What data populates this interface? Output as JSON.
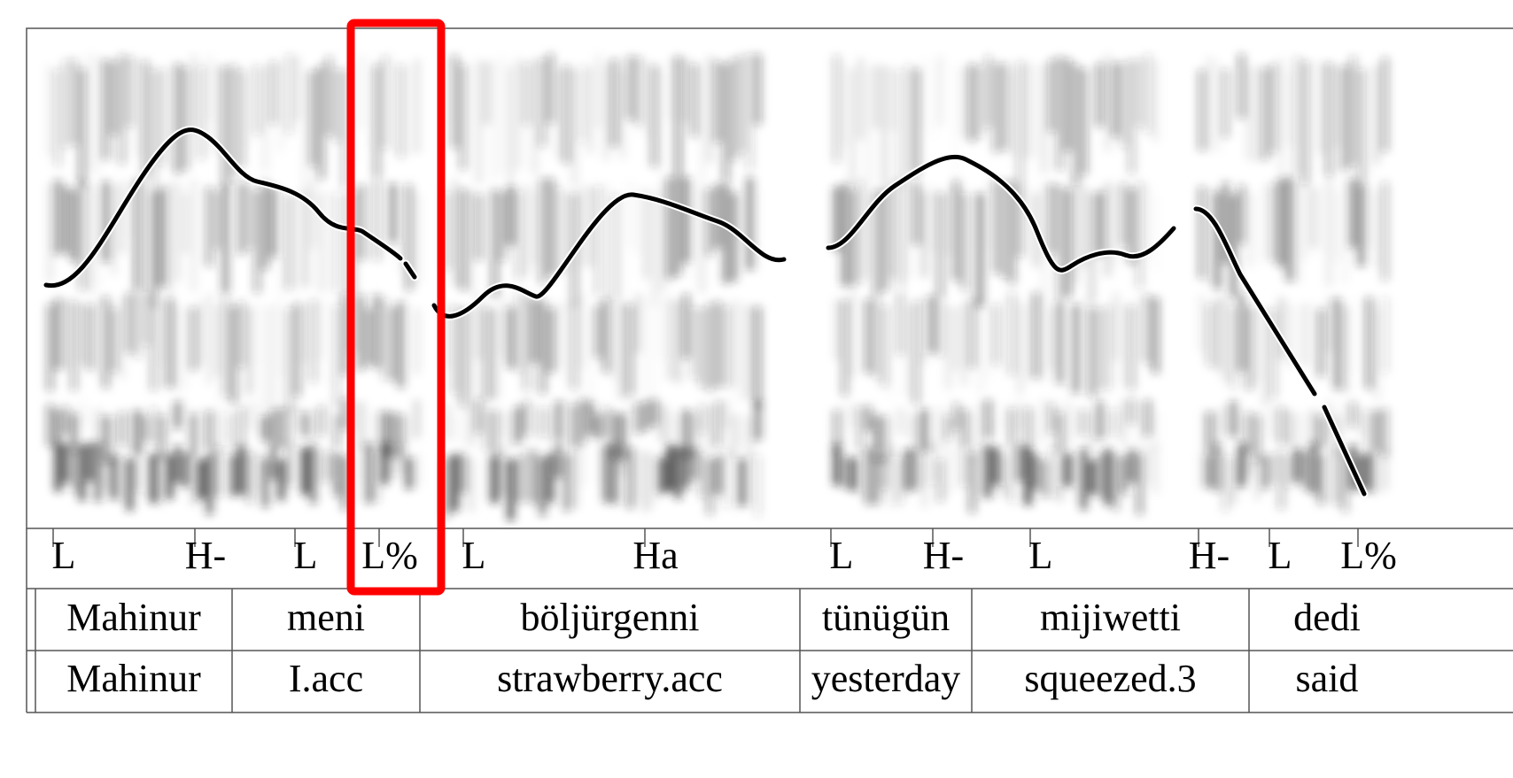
{
  "tones": [
    "L",
    "H-",
    "L",
    "L%",
    "L",
    "Ha",
    "L",
    "H-",
    "L",
    "H-",
    "L",
    "L%"
  ],
  "words": [
    "Mahinur",
    "meni",
    "böljürgenni",
    "tünügün",
    "mijiwetti",
    "dedi"
  ],
  "glosses": [
    "Mahinur",
    "I.acc",
    "strawberry.acc",
    "yesterday",
    "squeezed.3",
    "said"
  ]
}
